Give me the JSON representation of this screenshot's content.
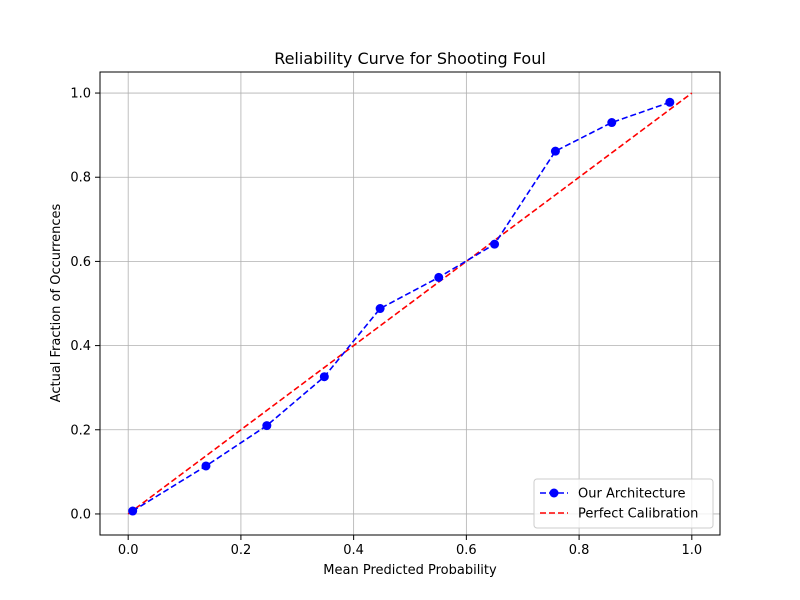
{
  "chart_data": {
    "type": "line",
    "title": "Reliability Curve for Shooting Foul",
    "xlabel": "Mean Predicted Probability",
    "ylabel": "Actual Fraction of Occurrences",
    "xlim": [
      -0.05,
      1.05
    ],
    "ylim": [
      -0.05,
      1.05
    ],
    "xticks": [
      0.0,
      0.2,
      0.4,
      0.6,
      0.8,
      1.0
    ],
    "yticks": [
      0.0,
      0.2,
      0.4,
      0.6,
      0.8,
      1.0
    ],
    "xtick_labels": [
      "0.0",
      "0.2",
      "0.4",
      "0.6",
      "0.8",
      "1.0"
    ],
    "ytick_labels": [
      "0.0",
      "0.2",
      "0.4",
      "0.6",
      "0.8",
      "1.0"
    ],
    "grid": true,
    "legend_position": "lower-right",
    "series": [
      {
        "name": "Our Architecture",
        "style": "dashed-with-markers",
        "color": "#0000ff",
        "x": [
          0.008,
          0.138,
          0.246,
          0.348,
          0.447,
          0.551,
          0.65,
          0.758,
          0.858,
          0.961
        ],
        "y": [
          0.007,
          0.114,
          0.21,
          0.326,
          0.488,
          0.562,
          0.641,
          0.862,
          0.93,
          0.978
        ]
      },
      {
        "name": "Perfect Calibration",
        "style": "dashed",
        "color": "#ff0000",
        "x": [
          0.0,
          1.0
        ],
        "y": [
          0.0,
          1.0
        ]
      }
    ]
  }
}
